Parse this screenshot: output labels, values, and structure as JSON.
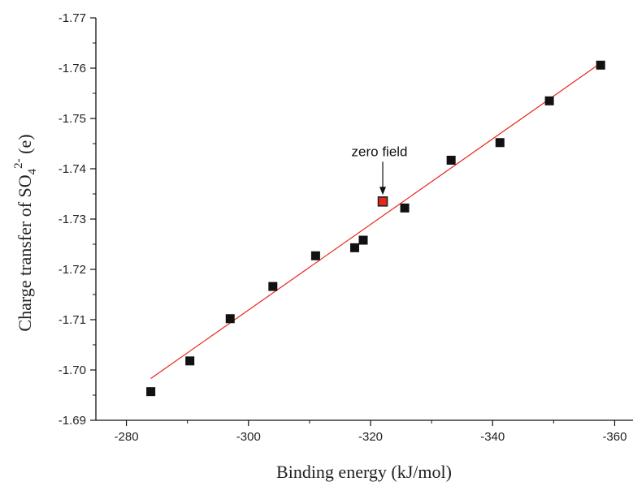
{
  "chart_data": {
    "type": "scatter",
    "xlabel": "Binding energy (kJ/mol)",
    "ylabel": {
      "prefix": "Charge transfer of SO",
      "subscript": "4",
      "superscript": "2-",
      "suffix": " (e)"
    },
    "xlim": [
      -275,
      -363
    ],
    "ylim": [
      -1.69,
      -1.77
    ],
    "x_ticks": [
      -280,
      -300,
      -320,
      -340,
      -360
    ],
    "x_tick_labels": [
      "-280",
      "-300",
      "-320",
      "-340",
      "-360"
    ],
    "y_ticks": [
      -1.69,
      -1.7,
      -1.71,
      -1.72,
      -1.73,
      -1.74,
      -1.75,
      -1.76,
      -1.77
    ],
    "y_tick_labels": [
      "-1.69",
      "-1.70",
      "-1.71",
      "-1.72",
      "-1.73",
      "-1.74",
      "-1.75",
      "-1.76",
      "-1.77"
    ],
    "grid": false,
    "points": [
      {
        "x": -284.0,
        "y": -1.6957
      },
      {
        "x": -290.4,
        "y": -1.7018
      },
      {
        "x": -297.0,
        "y": -1.7102
      },
      {
        "x": -304.0,
        "y": -1.7166
      },
      {
        "x": -311.0,
        "y": -1.7227
      },
      {
        "x": -317.4,
        "y": -1.7243
      },
      {
        "x": -318.8,
        "y": -1.7258
      },
      {
        "x": -322.0,
        "y": -1.7335,
        "highlight": true
      },
      {
        "x": -325.6,
        "y": -1.7322
      },
      {
        "x": -333.2,
        "y": -1.7417
      },
      {
        "x": -341.2,
        "y": -1.7452
      },
      {
        "x": -349.3,
        "y": -1.7535
      },
      {
        "x": -357.7,
        "y": -1.7606
      }
    ],
    "point_color": "#111111",
    "highlight_color": "#e8261b",
    "fit_line": {
      "x": [
        -284.0,
        -357.7
      ],
      "y": [
        -1.6983,
        -1.761
      ],
      "color": "#e8261b"
    },
    "annotations": [
      {
        "text": "zero field",
        "point_index": 7
      }
    ]
  }
}
